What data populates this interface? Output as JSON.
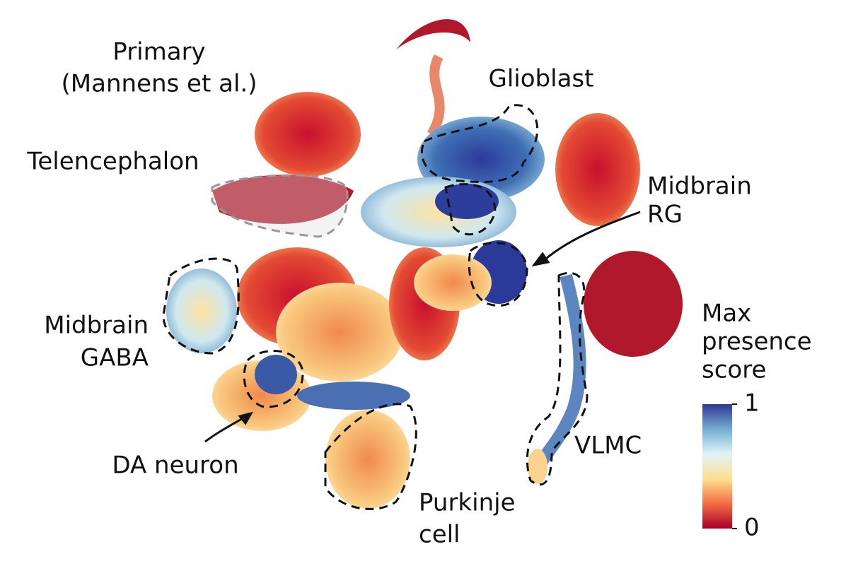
{
  "annotations": [
    {
      "lines": [
        "Primary",
        "(Mannens et al.)"
      ]
    },
    {
      "lines": [
        "Telencephalon"
      ]
    },
    {
      "lines": [
        "Glioblast"
      ]
    },
    {
      "lines": [
        "Midbrain",
        "RG"
      ]
    },
    {
      "lines": [
        "Midbrain",
        "GABA"
      ]
    },
    {
      "lines": [
        "DA neuron"
      ]
    },
    {
      "lines": [
        "Purkinje",
        "cell"
      ]
    },
    {
      "lines": [
        "VLMC"
      ]
    }
  ],
  "colorbar": {
    "title": [
      "Max",
      "presence",
      "score"
    ],
    "range": [
      0,
      1
    ],
    "ticks": [
      1,
      0
    ],
    "colors": [
      "#a50026",
      "#f46d43",
      "#fee090",
      "#e0f3f8",
      "#74add1",
      "#313695"
    ]
  }
}
